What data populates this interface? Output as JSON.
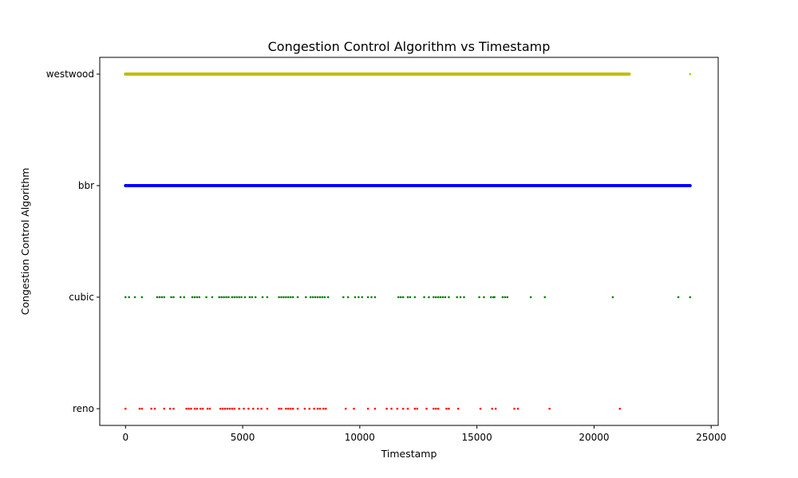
{
  "chart_data": {
    "type": "scatter",
    "title": "Congestion Control Algorithm vs Timestamp",
    "xlabel": "Timestamp",
    "ylabel": "Congestion Control Algorithm",
    "xlim": [
      -1100,
      25300
    ],
    "x_ticks": [
      0,
      5000,
      10000,
      15000,
      20000,
      25000
    ],
    "y_categories": [
      "reno",
      "cubic",
      "bbr",
      "westwood"
    ],
    "grid": false,
    "legend": "none",
    "series": [
      {
        "category": "westwood",
        "color": "#bfbf00",
        "x_ranges": [
          [
            0,
            21500
          ]
        ],
        "x": [
          24100
        ]
      },
      {
        "category": "bbr",
        "color": "#0000ff",
        "x_ranges": [
          [
            0,
            24100
          ]
        ],
        "x": []
      },
      {
        "category": "cubic",
        "color": "#008000",
        "x_ranges": [],
        "x": [
          0,
          150,
          400,
          700,
          1350,
          1450,
          1550,
          1650,
          1950,
          2050,
          2350,
          2500,
          2850,
          2950,
          3050,
          3150,
          3450,
          3700,
          4000,
          4100,
          4200,
          4300,
          4400,
          4550,
          4650,
          4750,
          4850,
          4950,
          5100,
          5300,
          5400,
          5550,
          5850,
          6050,
          6550,
          6650,
          6750,
          6850,
          6950,
          7050,
          7150,
          7350,
          7700,
          7900,
          8000,
          8100,
          8200,
          8300,
          8400,
          8500,
          8650,
          9300,
          9500,
          9800,
          9950,
          10100,
          10350,
          10500,
          10650,
          11650,
          11750,
          11850,
          12050,
          12150,
          12350,
          12750,
          12950,
          13150,
          13250,
          13350,
          13450,
          13550,
          13650,
          13800,
          14150,
          14300,
          14450,
          15100,
          15300,
          15600,
          15700,
          15750,
          16100,
          16200,
          16300,
          17300,
          17900,
          20800,
          23600,
          24100
        ]
      },
      {
        "category": "reno",
        "color": "#ff0000",
        "x_ranges": [],
        "x": [
          0,
          600,
          700,
          1100,
          1250,
          1650,
          1900,
          2050,
          2600,
          2700,
          2800,
          2950,
          3050,
          3200,
          3300,
          3500,
          3600,
          4050,
          4150,
          4250,
          4350,
          4450,
          4550,
          4650,
          4850,
          5050,
          5250,
          5450,
          5650,
          5800,
          6050,
          6550,
          6650,
          6850,
          6950,
          7050,
          7150,
          7350,
          7650,
          7850,
          8050,
          8200,
          8300,
          8450,
          8550,
          9400,
          9750,
          10350,
          10650,
          11150,
          11350,
          11600,
          11850,
          12050,
          12350,
          12450,
          12850,
          13150,
          13250,
          13350,
          13700,
          13800,
          14200,
          15150,
          15650,
          15800,
          16600,
          16750,
          18100,
          21100
        ]
      }
    ]
  }
}
